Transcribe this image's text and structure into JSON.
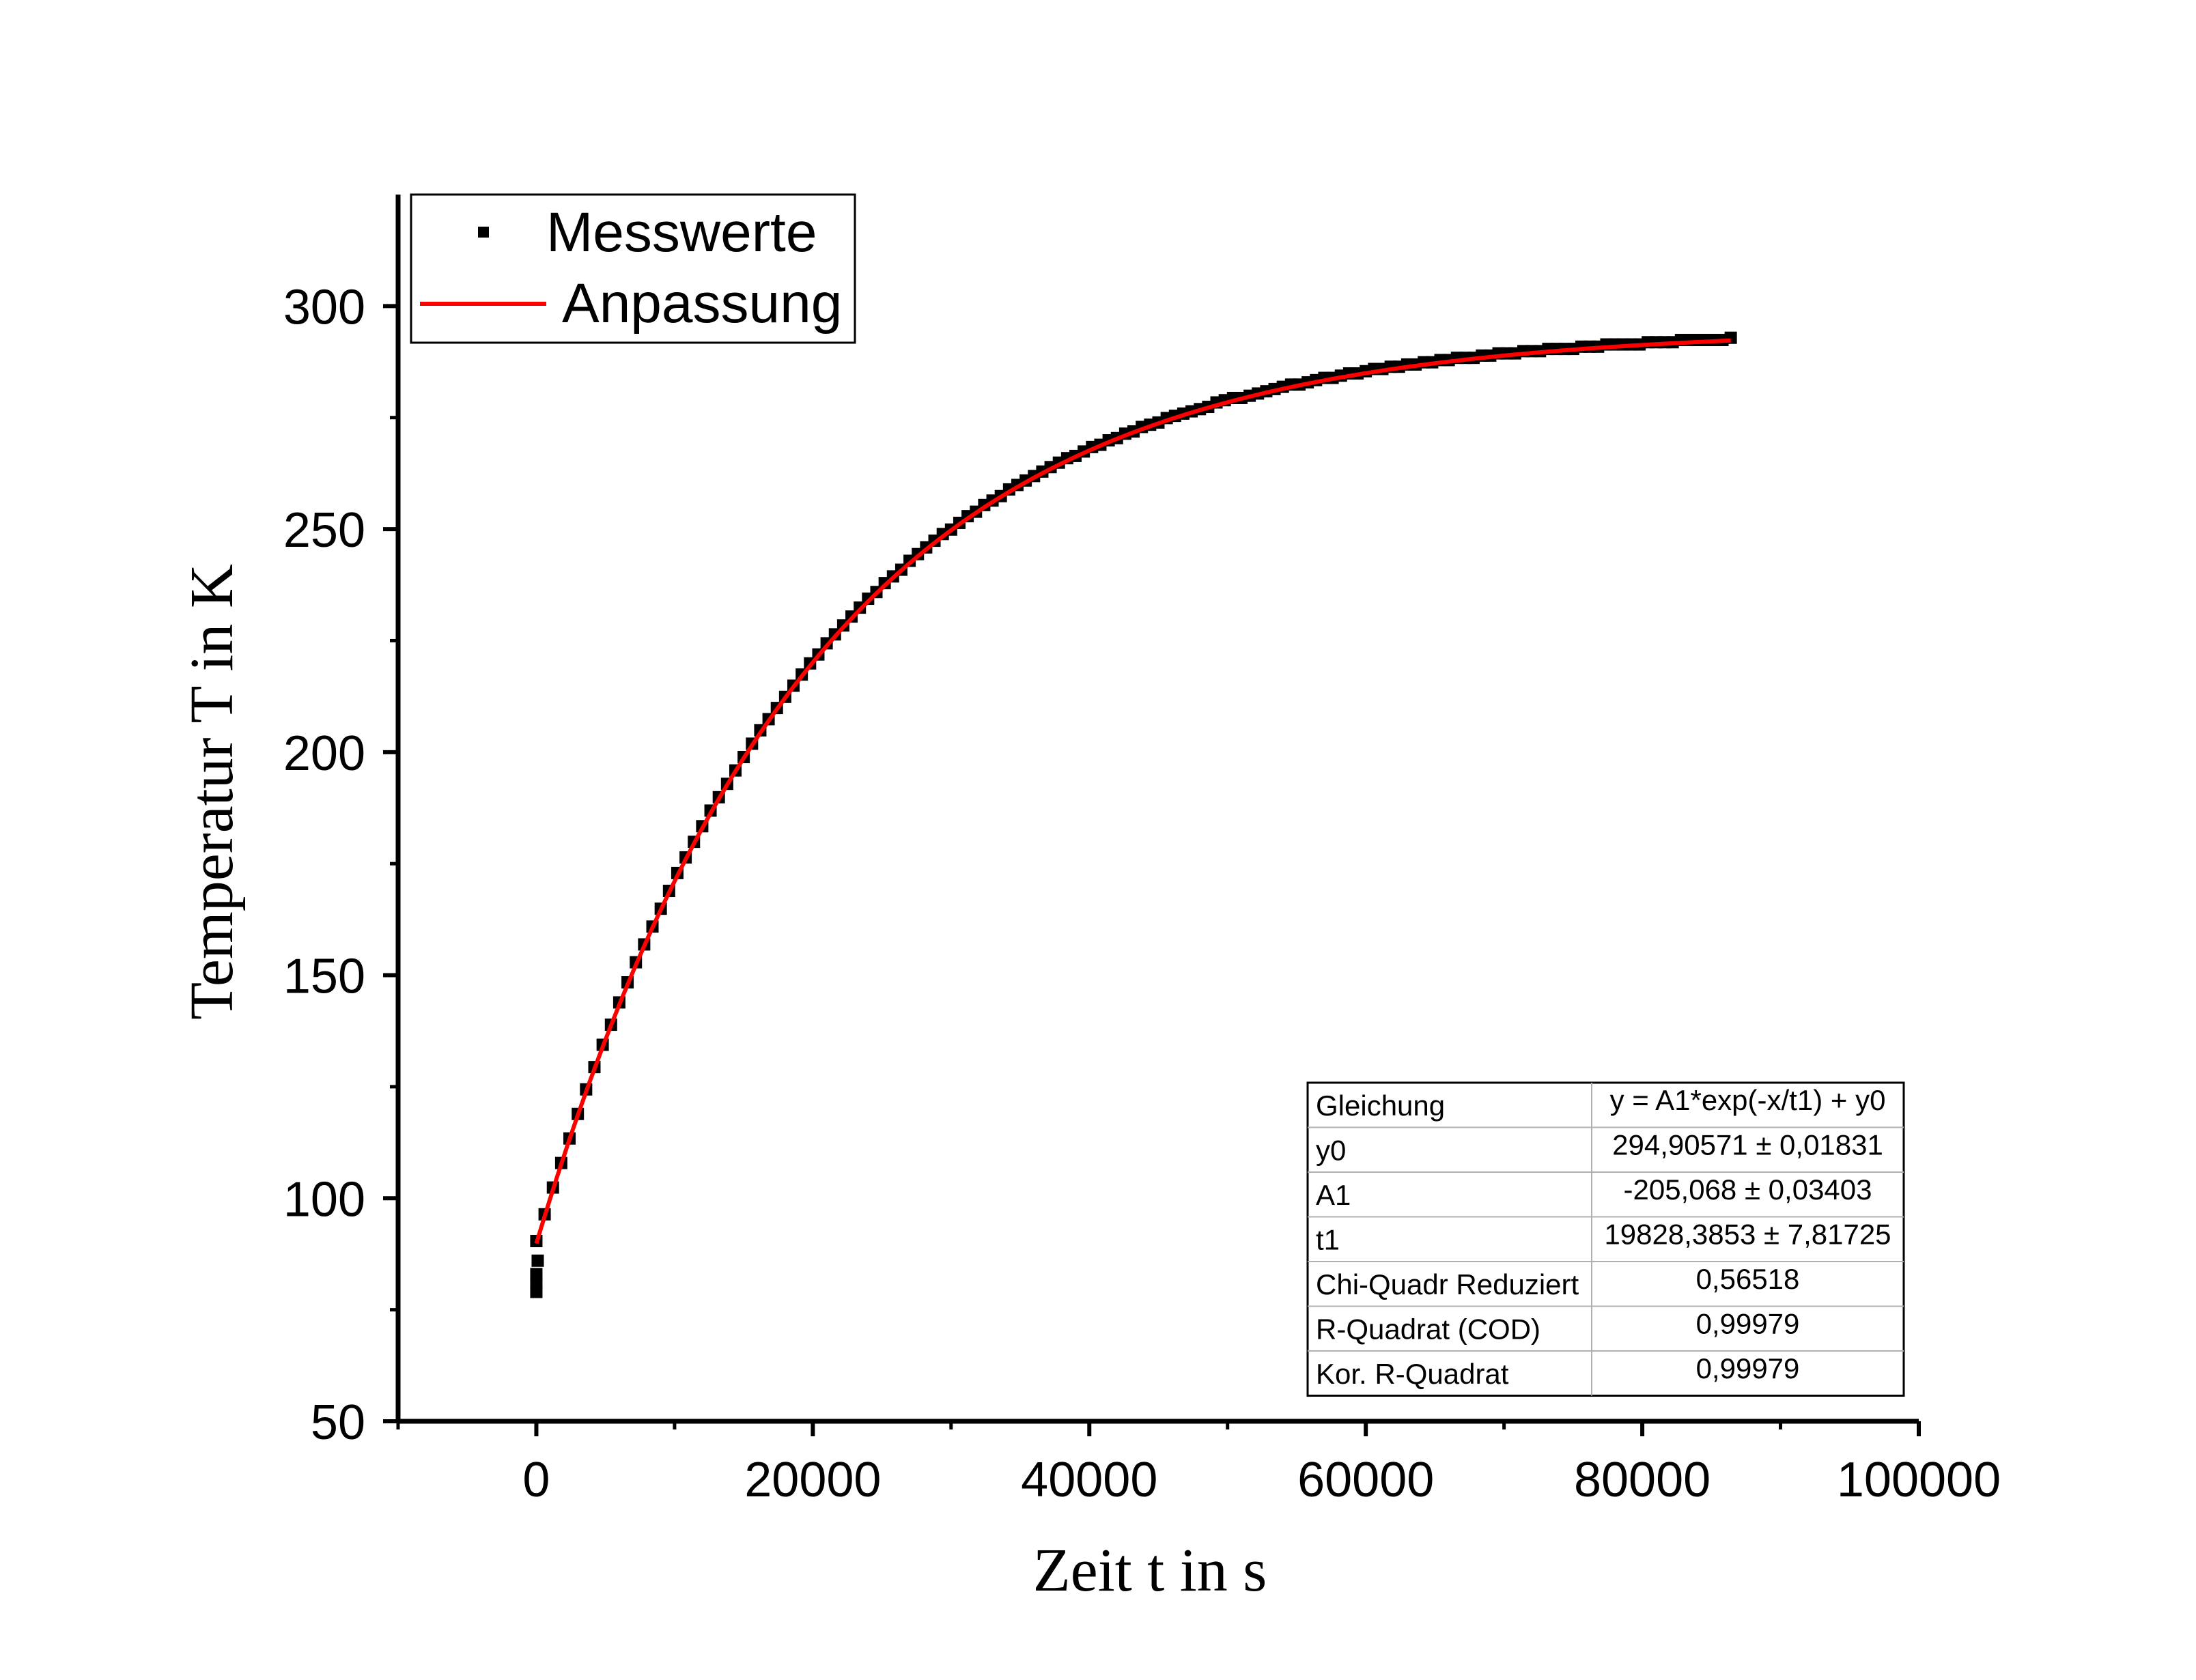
{
  "chart_data": {
    "type": "scatter",
    "xlabel": "Zeit t in s",
    "ylabel": "Temperatur T in K",
    "xlim": [
      -10000,
      100000
    ],
    "ylim": [
      50,
      325
    ],
    "xticks": [
      0,
      20000,
      40000,
      60000,
      80000,
      100000
    ],
    "yticks": [
      50,
      100,
      150,
      200,
      250,
      300
    ],
    "legend": {
      "placement": "top-left",
      "entries": [
        {
          "label": "Messwerte",
          "marker": "square",
          "color": "#000000"
        },
        {
          "label": "Anpassung",
          "marker": "line",
          "color": "#ff0000"
        }
      ]
    },
    "series": [
      {
        "name": "Messwerte",
        "color": "#000000",
        "x_start": 0,
        "x_end": 86400,
        "x_step": 600,
        "model": "y = A1*exp(-x/t1) + y0",
        "extra_points": [
          [
            0,
            79
          ],
          [
            0,
            81
          ],
          [
            0,
            83
          ],
          [
            100,
            86
          ]
        ]
      },
      {
        "name": "Anpassung",
        "color": "#ff0000",
        "x_start": 0,
        "x_end": 86400,
        "x_step": 300,
        "model": "y = A1*exp(-x/t1) + y0"
      }
    ],
    "fit": {
      "y0": 294.90571,
      "A1": -205.068,
      "t1": 19828.3853
    },
    "table": {
      "rows": [
        [
          "Gleichung",
          "y = A1*exp(-x/t1) + y0"
        ],
        [
          "y0",
          "294,90571 ± 0,01831"
        ],
        [
          "A1",
          "-205,068 ± 0,03403"
        ],
        [
          "t1",
          "19828,3853 ± 7,81725"
        ],
        [
          "Chi-Quadr Reduziert",
          "0,56518"
        ],
        [
          "R-Quadrat (COD)",
          "0,99979"
        ],
        [
          "Kor. R-Quadrat",
          "0,99979"
        ]
      ]
    }
  }
}
